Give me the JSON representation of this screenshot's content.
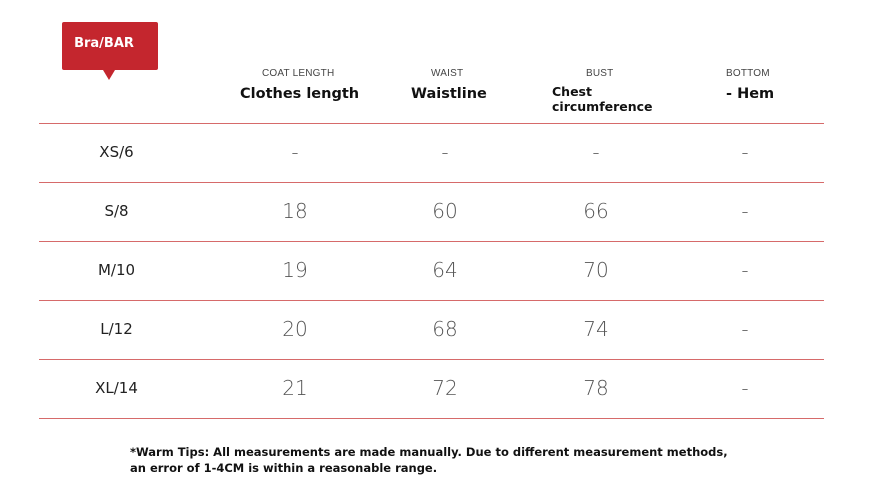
{
  "tag": {
    "label": "Bra/BAR"
  },
  "columns": [
    {
      "sub": "COAT LENGTH",
      "title": "Clothes length"
    },
    {
      "sub": "WAIST",
      "title": "Waistline"
    },
    {
      "sub": "BUST",
      "title": "Chest circumference"
    },
    {
      "sub": "BOTTOM",
      "title": "- Hem"
    }
  ],
  "rows": [
    {
      "size": "XS/6",
      "values": [
        "-",
        "-",
        "-",
        "-"
      ]
    },
    {
      "size": "S/8",
      "values": [
        "18",
        "60",
        "66",
        "-"
      ]
    },
    {
      "size": "M/10",
      "values": [
        "19",
        "64",
        "70",
        "-"
      ]
    },
    {
      "size": "L/12",
      "values": [
        "20",
        "68",
        "74",
        "-"
      ]
    },
    {
      "size": "XL/14",
      "values": [
        "21",
        "72",
        "78",
        "-"
      ]
    }
  ],
  "note": {
    "line1": "*Warm Tips: All measurements are made manually. Due to different measurement methods,",
    "line2": "an error of 1-4CM is within a reasonable range."
  }
}
